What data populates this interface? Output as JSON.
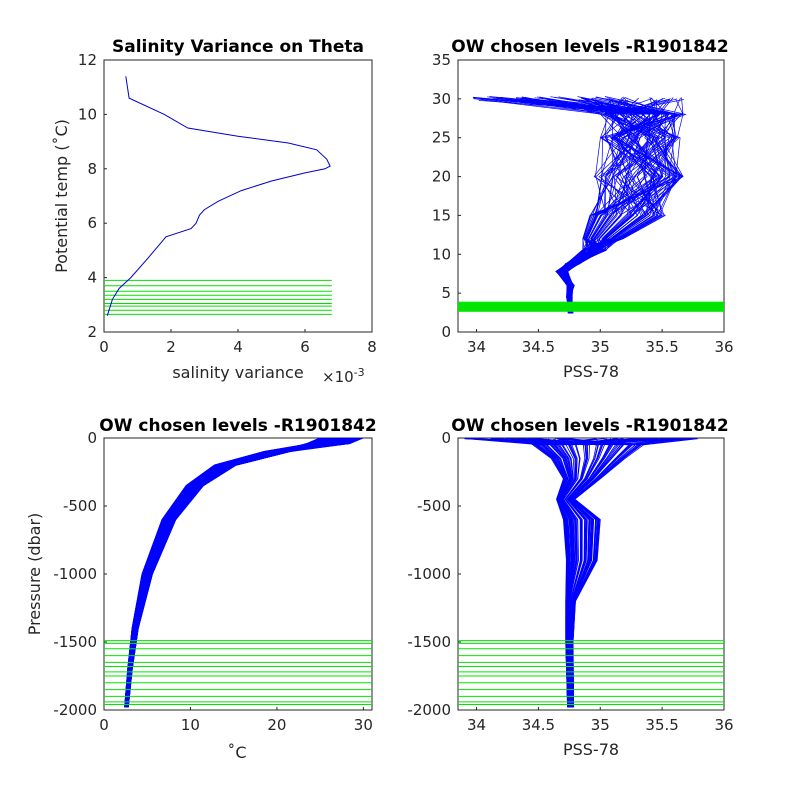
{
  "chart_data": [
    {
      "id": "variance",
      "type": "line",
      "title": "Salinity Variance on Theta",
      "xlabel": "salinity variance",
      "x_exponent_label": "×10",
      "x_exponent_power": "-3",
      "ylabel": "Potential temp (˚C)",
      "xlim": [
        0,
        8
      ],
      "ylim": [
        2,
        12
      ],
      "xticks": [
        0,
        2,
        4,
        6,
        8
      ],
      "xtick_labels": [
        "0",
        "2",
        "4",
        "6",
        "8"
      ],
      "yticks": [
        2,
        4,
        6,
        8,
        10,
        12
      ],
      "ytick_labels": [
        "2",
        "4",
        "6",
        "8",
        "10",
        "12"
      ],
      "colors": {
        "profile": "#0000cc",
        "levels": "#00e000"
      },
      "series": [
        {
          "x": [
            0.1,
            0.25,
            0.45,
            0.8,
            1.3,
            1.85,
            2.6,
            2.75,
            2.85,
            3.0,
            3.4,
            4.1,
            5.0,
            6.0,
            6.6,
            6.75,
            6.65,
            6.35,
            5.5,
            4.0,
            2.5,
            1.8,
            0.75,
            0.65
          ],
          "y": [
            2.6,
            3.2,
            3.6,
            4.0,
            4.7,
            5.5,
            5.8,
            6.0,
            6.3,
            6.5,
            6.8,
            7.2,
            7.55,
            7.85,
            8.0,
            8.1,
            8.35,
            8.7,
            8.95,
            9.2,
            9.5,
            10.0,
            10.6,
            11.4
          ]
        }
      ],
      "hlines": [
        2.65,
        2.8,
        2.95,
        3.05,
        3.2,
        3.35,
        3.5,
        3.7,
        3.9
      ],
      "hline_xrange": [
        0,
        6.8
      ]
    },
    {
      "id": "theta-psal",
      "type": "line",
      "title": "OW chosen levels -R1901842",
      "xlabel": "PSS-78",
      "ylabel": "",
      "xlim": [
        33.85,
        36
      ],
      "ylim": [
        0,
        35
      ],
      "xticks": [
        34,
        34.5,
        35,
        35.5,
        36
      ],
      "xtick_labels": [
        "34",
        "34.5",
        "35",
        "35.5",
        "36"
      ],
      "yticks": [
        0,
        5,
        10,
        15,
        20,
        25,
        30,
        35
      ],
      "ytick_labels": [
        "0",
        "5",
        "10",
        "15",
        "20",
        "25",
        "30",
        "35"
      ],
      "colors": {
        "profile": "#0000ff",
        "levels": "#00e600"
      },
      "band": [
        2.6,
        3.9
      ],
      "n_profiles": 90
    },
    {
      "id": "pres-temp",
      "type": "line",
      "title": "OW chosen levels -R1901842",
      "xlabel": "˚C",
      "ylabel": "Pressure (dbar)",
      "xlim": [
        0,
        31
      ],
      "ylim": [
        -2000,
        0
      ],
      "xticks": [
        0,
        10,
        20,
        30
      ],
      "xtick_labels": [
        "0",
        "10",
        "20",
        "30"
      ],
      "yticks": [
        -2000,
        -1500,
        -1000,
        -500,
        0
      ],
      "ytick_labels": [
        "-2000",
        "-1500",
        "-1000",
        "-500",
        "0"
      ],
      "colors": {
        "profile": "#0000ff",
        "levels": "#00e600"
      },
      "hlines": [
        -1490,
        -1510,
        -1550,
        -1600,
        -1650,
        -1680,
        -1720,
        -1750,
        -1800,
        -1850,
        -1900,
        -1940,
        -1960
      ],
      "n_profiles": 90
    },
    {
      "id": "pres-psal",
      "type": "line",
      "title": "OW chosen levels -R1901842",
      "xlabel": "PSS-78",
      "ylabel": "",
      "xlim": [
        33.85,
        36
      ],
      "ylim": [
        -2000,
        0
      ],
      "xticks": [
        34,
        34.5,
        35,
        35.5,
        36
      ],
      "xtick_labels": [
        "34",
        "34.5",
        "35",
        "35.5",
        "36"
      ],
      "yticks": [
        -2000,
        -1500,
        -1000,
        -500,
        0
      ],
      "ytick_labels": [
        "-2000",
        "-1500",
        "-1000",
        "-500",
        "0"
      ],
      "colors": {
        "profile": "#0000ff",
        "levels": "#00e600"
      },
      "hlines": [
        -1490,
        -1510,
        -1550,
        -1600,
        -1650,
        -1680,
        -1720,
        -1750,
        -1800,
        -1850,
        -1900,
        -1940,
        -1960
      ],
      "n_profiles": 90
    }
  ]
}
